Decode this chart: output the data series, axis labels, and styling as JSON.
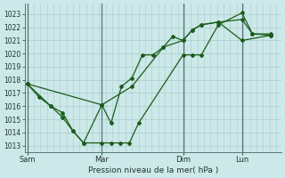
{
  "bg_color": "#cce8e8",
  "grid_color_major": "#aacccc",
  "grid_color_minor": "#bbdddd",
  "line_color": "#1a5c1a",
  "xlabel": "Pression niveau de la mer( hPa )",
  "ylim": [
    1012.5,
    1023.8
  ],
  "yticks": [
    1013,
    1014,
    1015,
    1016,
    1017,
    1018,
    1019,
    1020,
    1021,
    1022,
    1023
  ],
  "xtick_labels": [
    "Sam",
    "Mar",
    "Dim",
    "Lun"
  ],
  "xtick_positions": [
    0.0,
    0.285,
    0.595,
    0.82
  ],
  "vline_positions": [
    0.0,
    0.285,
    0.595,
    0.82
  ],
  "line1_x": [
    0.0,
    0.045,
    0.09,
    0.135,
    0.175,
    0.215,
    0.285,
    0.32,
    0.355,
    0.39,
    0.425,
    0.595,
    0.63,
    0.665,
    0.73,
    0.82,
    0.86,
    0.93
  ],
  "line1_y": [
    1017.7,
    1016.7,
    1016.0,
    1015.15,
    1014.1,
    1013.2,
    1013.2,
    1013.2,
    1013.2,
    1013.2,
    1014.7,
    1019.9,
    1019.9,
    1019.9,
    1022.2,
    1023.1,
    1021.5,
    1021.4
  ],
  "line2_x": [
    0.0,
    0.09,
    0.135,
    0.175,
    0.215,
    0.285,
    0.32,
    0.36,
    0.4,
    0.44,
    0.48,
    0.52,
    0.555,
    0.595,
    0.63,
    0.665,
    0.73,
    0.82,
    0.86,
    0.93
  ],
  "line2_y": [
    1017.7,
    1016.0,
    1015.5,
    1014.1,
    1013.2,
    1016.1,
    1014.7,
    1017.5,
    1018.15,
    1019.9,
    1019.9,
    1020.5,
    1021.3,
    1021.0,
    1021.8,
    1022.2,
    1022.4,
    1022.6,
    1021.5,
    1021.5
  ],
  "line3_x": [
    0.0,
    0.285,
    0.4,
    0.52,
    0.595,
    0.63,
    0.665,
    0.73,
    0.82,
    0.93
  ],
  "line3_y": [
    1017.7,
    1016.1,
    1017.5,
    1020.5,
    1021.0,
    1021.8,
    1022.2,
    1022.4,
    1021.0,
    1021.4
  ]
}
